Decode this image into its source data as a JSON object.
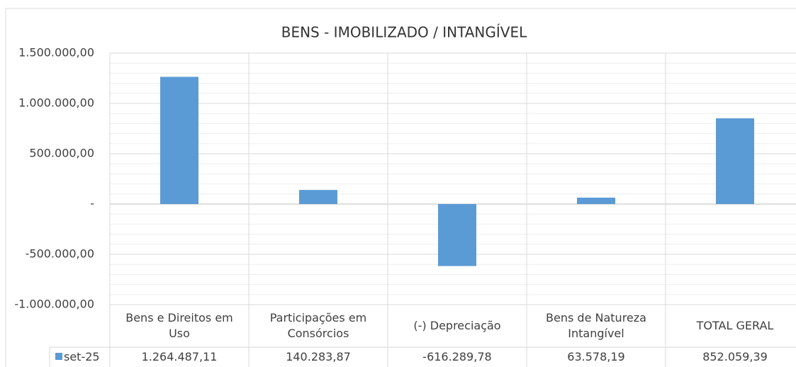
{
  "chart_data": {
    "type": "bar",
    "title": "BENS - IMOBILIZADO / INTANGÍVEL",
    "categories": [
      "Bens e Direitos em Uso",
      "Participações em Consórcios",
      "(-) Depreciação",
      "Bens de Natureza Intangível",
      "TOTAL GERAL"
    ],
    "series": [
      {
        "name": "set-25",
        "color": "#5b9bd5",
        "values": [
          1264487.11,
          140283.87,
          -616289.78,
          63578.19,
          852059.39
        ],
        "value_labels": [
          "1.264.487,11",
          "140.283,87",
          "-616.289,78",
          "63.578,19",
          "852.059,39"
        ]
      }
    ],
    "ylim": [
      -1000000,
      1500000
    ],
    "yticks": [
      {
        "value": -1000000,
        "label": "-1.000.000,00"
      },
      {
        "value": -500000,
        "label": "-500.000,00"
      },
      {
        "value": 0,
        "label": "-"
      },
      {
        "value": 500000,
        "label": "500.000,00"
      },
      {
        "value": 1000000,
        "label": "1.000.000,00"
      },
      {
        "value": 1500000,
        "label": "1.500.000,00"
      }
    ],
    "yminorticks": [
      -900000,
      -800000,
      -700000,
      -600000,
      -400000,
      -300000,
      -200000,
      -100000,
      100000,
      200000,
      300000,
      400000,
      600000,
      700000,
      800000,
      900000,
      1100000,
      1200000,
      1300000,
      1400000
    ],
    "grid": true,
    "data_table": true
  }
}
